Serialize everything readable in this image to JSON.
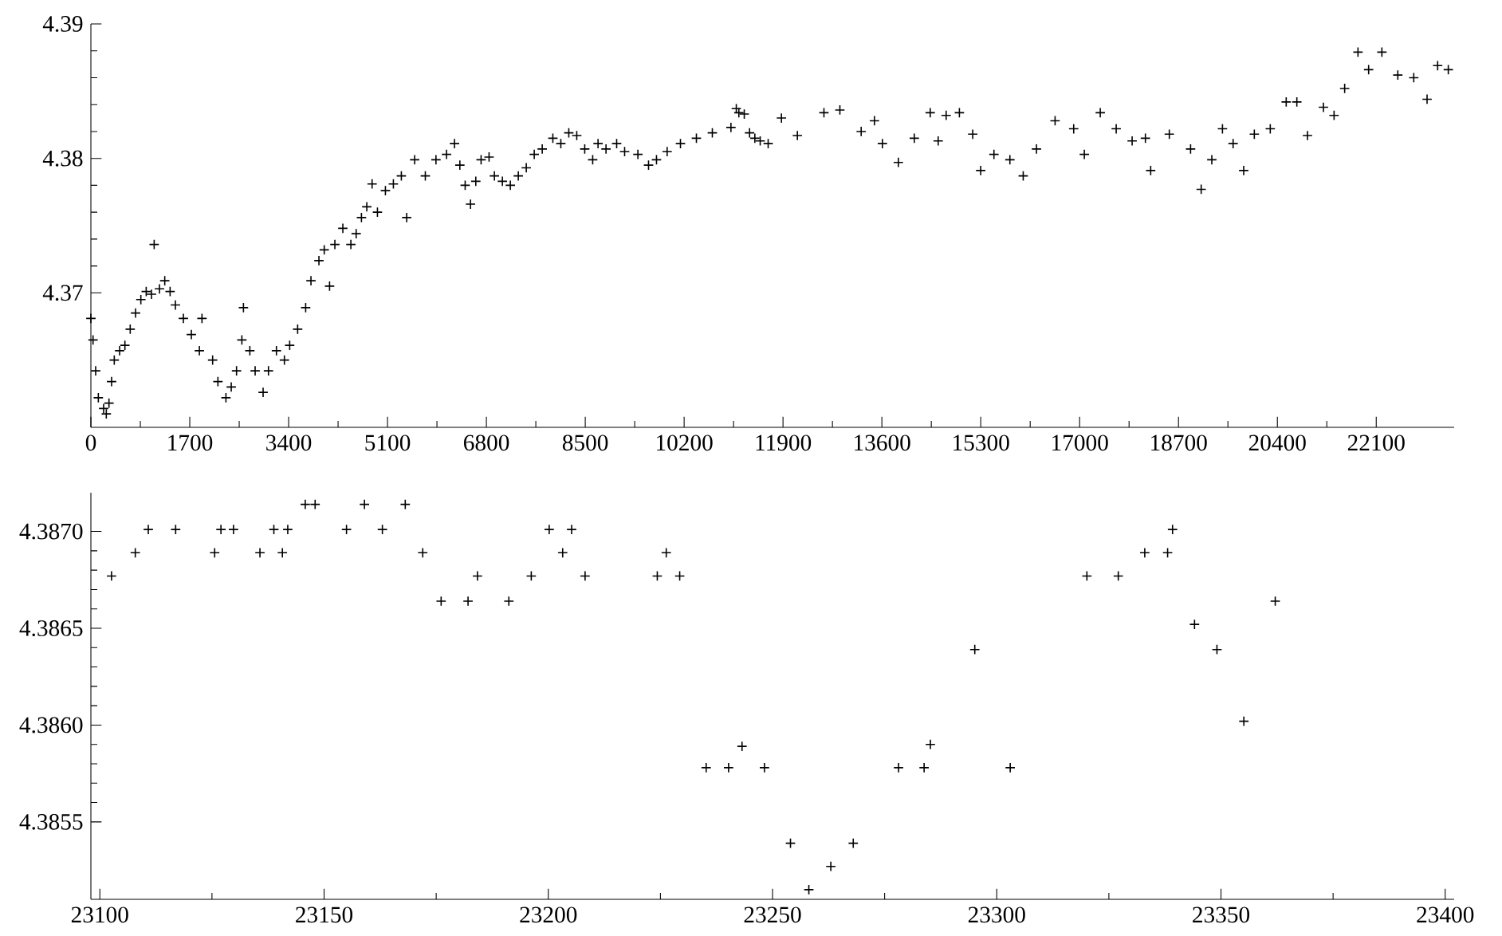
{
  "chart_data": [
    {
      "type": "scatter",
      "marker": "cross",
      "color": "#000000",
      "x": [
        0,
        37,
        82,
        128,
        219,
        265,
        311,
        356,
        402,
        494,
        585,
        676,
        768,
        859,
        951,
        1042,
        1088,
        1179,
        1270,
        1362,
        1453,
        1590,
        1727,
        1865,
        1910,
        2093,
        2184,
        2322,
        2413,
        2504,
        2596,
        2623,
        2733,
        2824,
        2961,
        3053,
        3190,
        3327,
        3418,
        3555,
        3693,
        3784,
        3921,
        4012,
        4104,
        4195,
        4332,
        4470,
        4561,
        4652,
        4744,
        4835,
        4927,
        5064,
        5201,
        5338,
        5430,
        5567,
        5750,
        5933,
        6115,
        6252,
        6344,
        6435,
        6527,
        6618,
        6709,
        6846,
        6938,
        7075,
        7212,
        7349,
        7486,
        7623,
        7760,
        7943,
        8080,
        8217,
        8354,
        8491,
        8628,
        8720,
        8857,
        9040,
        9177,
        9405,
        9588,
        9725,
        9908,
        10137,
        10411,
        10685,
        11005,
        11097,
        11141,
        11234,
        11325,
        11416,
        11508,
        11645,
        11873,
        12147,
        12604,
        12878,
        13244,
        13472,
        13609,
        13883,
        14157,
        14431,
        14568,
        14705,
        14933,
        15162,
        15299,
        15527,
        15801,
        16030,
        16258,
        16578,
        16898,
        17081,
        17355,
        17629,
        17903,
        18131,
        18222,
        18542,
        18908,
        19090,
        19273,
        19456,
        19639,
        19821,
        20004,
        20278,
        20552,
        20735,
        20918,
        21192,
        21375,
        21557,
        21786,
        21969,
        22197,
        22471,
        22745,
        22974,
        23156,
        23339
      ],
      "values": [
        4.3681,
        4.3665,
        4.3642,
        4.3622,
        4.3614,
        4.361,
        4.3618,
        4.3634,
        4.365,
        4.3657,
        4.3661,
        4.3673,
        4.3685,
        4.3695,
        4.3701,
        4.3699,
        4.3736,
        4.3703,
        4.3709,
        4.3701,
        4.3691,
        4.3681,
        4.3669,
        4.3657,
        4.3681,
        4.365,
        4.3634,
        4.3622,
        4.363,
        4.3642,
        4.3665,
        4.3689,
        4.3657,
        4.3642,
        4.3626,
        4.3642,
        4.3657,
        4.365,
        4.3661,
        4.3673,
        4.3689,
        4.3709,
        4.3724,
        4.3732,
        4.3705,
        4.3736,
        4.3748,
        4.3736,
        4.3744,
        4.3756,
        4.3764,
        4.3781,
        4.376,
        4.3776,
        4.3781,
        4.3787,
        4.3756,
        4.3799,
        4.3787,
        4.3799,
        4.3803,
        4.3811,
        4.3795,
        4.378,
        4.3766,
        4.3783,
        4.3799,
        4.3801,
        4.3787,
        4.3783,
        4.378,
        4.3787,
        4.3793,
        4.3803,
        4.3807,
        4.3815,
        4.3811,
        4.3819,
        4.3817,
        4.3807,
        4.3799,
        4.3811,
        4.3807,
        4.3811,
        4.3805,
        4.3803,
        4.3795,
        4.3799,
        4.3805,
        4.3811,
        4.3815,
        4.3819,
        4.3823,
        4.3837,
        4.3834,
        4.3833,
        4.3819,
        4.3815,
        4.3813,
        4.3811,
        4.383,
        4.3817,
        4.3834,
        4.3836,
        4.382,
        4.3828,
        4.3811,
        4.3797,
        4.3815,
        4.3834,
        4.3813,
        4.3832,
        4.3834,
        4.3818,
        4.3791,
        4.3803,
        4.3799,
        4.3787,
        4.3807,
        4.3828,
        4.3822,
        4.3803,
        4.3834,
        4.3822,
        4.3813,
        4.3815,
        4.3791,
        4.3818,
        4.3807,
        4.3777,
        4.3799,
        4.3822,
        4.3811,
        4.3791,
        4.3818,
        4.3822,
        4.3842,
        4.3842,
        4.3817,
        4.3838,
        4.3832,
        4.3852,
        4.3879,
        4.3866,
        4.3879,
        4.3862,
        4.386,
        4.3844,
        4.3869,
        4.3866
      ],
      "xlim": [
        0,
        23440
      ],
      "ylim": [
        4.36,
        4.39
      ],
      "xticks": [
        0,
        1700,
        3400,
        5100,
        6800,
        8500,
        10200,
        11900,
        13600,
        15300,
        17000,
        18700,
        20400,
        22100
      ],
      "yticks": [
        4.37,
        4.38,
        4.39
      ]
    },
    {
      "type": "scatter",
      "marker": "cross",
      "color": "#000000",
      "x": [
        23102.6,
        23107.9,
        23110.8,
        23116.9,
        23125.6,
        23127,
        23129.8,
        23135.7,
        23138.8,
        23140.7,
        23141.9,
        23145.8,
        23148,
        23155,
        23159,
        23163,
        23168.1,
        23172,
        23176.1,
        23182.1,
        23184.2,
        23191.2,
        23196.2,
        23200.2,
        23203.2,
        23205.2,
        23208.2,
        23224.3,
        23226.3,
        23229.3,
        23235.2,
        23240.2,
        23243.2,
        23248.2,
        23254,
        23258.1,
        23263,
        23268,
        23278.1,
        23283.8,
        23285.2,
        23295.1,
        23303,
        23320.1,
        23327.1,
        23333,
        23338.1,
        23339.2,
        23344.1,
        23349.1,
        23355.1,
        23362.1
      ],
      "values": [
        4.38677,
        4.38689,
        4.38701,
        4.38701,
        4.38689,
        4.38701,
        4.38701,
        4.38689,
        4.38701,
        4.38689,
        4.38701,
        4.38714,
        4.38714,
        4.38701,
        4.38714,
        4.38701,
        4.38714,
        4.38689,
        4.38664,
        4.38664,
        4.38677,
        4.38664,
        4.38677,
        4.38701,
        4.38689,
        4.38701,
        4.38677,
        4.38677,
        4.38689,
        4.38677,
        4.38578,
        4.38578,
        4.38589,
        4.38578,
        4.38539,
        4.38515,
        4.38527,
        4.38539,
        4.38578,
        4.38578,
        4.3859,
        4.38639,
        4.38578,
        4.38677,
        4.38677,
        4.38689,
        4.38689,
        4.38701,
        4.38652,
        4.38639,
        4.38602,
        4.38664
      ],
      "xlim": [
        23098,
        23402
      ],
      "ylim": [
        4.3851,
        4.3872
      ],
      "xticks": [
        23100,
        23150,
        23200,
        23250,
        23300,
        23350,
        23400
      ],
      "yticks": [
        {
          "value": 4.3855,
          "label": "4.3855"
        },
        {
          "value": 4.386,
          "label": "4.3860"
        },
        {
          "value": 4.3865,
          "label": "4.3865"
        },
        {
          "value": 4.387,
          "label": "4.3870"
        }
      ]
    }
  ]
}
